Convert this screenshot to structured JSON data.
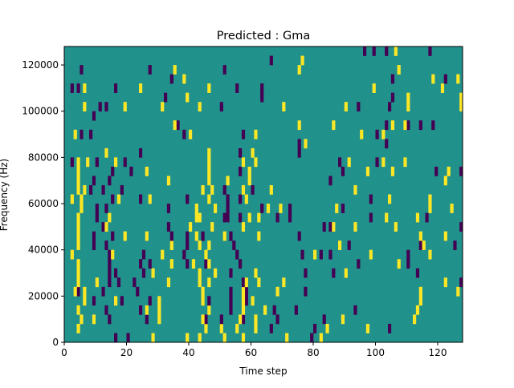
{
  "chart_data": {
    "type": "heatmap",
    "title": "Predicted : Gma",
    "xlabel": "Time step",
    "ylabel": "Frequency (Hz)",
    "xlim": [
      0,
      128
    ],
    "ylim": [
      0,
      128000
    ],
    "n_cols": 128,
    "n_rows": 32,
    "row_height_hz": 4000,
    "xticks": [
      "0",
      "20",
      "40",
      "60",
      "80",
      "100",
      "120"
    ],
    "xtick_values": [
      0,
      20,
      40,
      60,
      80,
      100,
      120
    ],
    "yticks": [
      "0",
      "20000",
      "40000",
      "60000",
      "80000",
      "100000",
      "120000"
    ],
    "ytick_values": [
      0,
      20000,
      40000,
      60000,
      80000,
      100000,
      120000
    ],
    "colors": {
      "background": "#21918c",
      "low": "#440154",
      "high": "#fde725"
    },
    "rows_low_high": [
      [
        [
          16,
          20,
          79
        ],
        [
          28,
          39,
          43,
          51,
          57,
          71,
          82
        ]
      ],
      [
        [
          66,
          80,
          104
        ],
        [
          4,
          45,
          50,
          55,
          61,
          84,
          97
        ]
      ],
      [
        [
          14,
          26,
          45,
          50,
          57,
          68,
          83
        ],
        [
          5,
          9,
          30,
          44,
          56,
          61,
          89,
          112
        ]
      ],
      [
        [
          13,
          24,
          53,
          67,
          74,
          93
        ],
        [
          4,
          26,
          30,
          46,
          57,
          64,
          113
        ]
      ],
      [
        [
          9,
          18,
          27,
          46,
          53,
          58
        ],
        [
          6,
          16,
          30,
          44,
          57,
          60,
          114
        ]
      ],
      [
        [
          4,
          12,
          23,
          53,
          58,
          77
        ],
        [
          3,
          6,
          44,
          57,
          68,
          114,
          126
        ]
      ],
      [
        [
          14,
          17,
          22,
          57,
          127
        ],
        [
          4,
          10,
          33,
          43,
          46,
          58,
          62,
          70,
          122
        ]
      ],
      [
        [
          14,
          16,
          25,
          53,
          77,
          86,
          113
        ],
        [
          4,
          28,
          43,
          48,
          61,
          90
        ]
      ],
      [
        [
          14,
          24,
          27,
          39,
          45,
          56,
          94,
          110
        ],
        [
          4,
          34,
          41,
          46,
          107
        ]
      ],
      [
        [
          14,
          25,
          38,
          55,
          76,
          82,
          85,
          110
        ],
        [
          2,
          15,
          31,
          45,
          80,
          98,
          117
        ]
      ],
      [
        [
          9,
          13,
          39,
          54,
          91,
          114,
          125
        ],
        [
          4,
          34,
          43,
          46,
          88,
          115
        ]
      ],
      [
        [
          9,
          15,
          34,
          39,
          44,
          53,
          75
        ],
        [
          4,
          19,
          26,
          42,
          51,
          62,
          114,
          122
        ]
      ],
      [
        [
          12,
          33,
          83,
          85,
          127
        ],
        [
          4,
          13,
          40,
          47,
          57,
          86,
          93,
          106
        ]
      ],
      [
        [
          10,
          51,
          52,
          56,
          68,
          72,
          98,
          116
        ],
        [
          4,
          14,
          42,
          43,
          59,
          62,
          103,
          113
        ]
      ],
      [
        [
          10,
          13,
          33,
          52,
          63,
          72,
          89
        ],
        [
          5,
          42,
          48,
          65,
          69,
          87,
          117,
          124
        ]
      ],
      [
        [
          15,
          24,
          39,
          52,
          56,
          98
        ],
        [
          2,
          5,
          17,
          27,
          46,
          58,
          104,
          117
        ]
      ],
      [
        [
          8,
          12,
          18,
          51,
          60
        ],
        [
          4,
          6,
          44,
          47,
          57,
          66,
          93
        ]
      ],
      [
        [
          9,
          14,
          85
        ],
        [
          4,
          33,
          46,
          52,
          59,
          122
        ]
      ],
      [
        [
          15,
          21,
          56,
          89,
          119,
          127
        ],
        [
          4,
          26,
          46,
          59,
          97,
          105,
          123
        ]
      ],
      [
        [
          2,
          10,
          19,
          88,
          100
        ],
        [
          4,
          7,
          16,
          46,
          57,
          61,
          91,
          102,
          109
        ]
      ],
      [
        [
          24,
          56,
          75
        ],
        [
          13,
          46,
          60
        ]
      ],
      [
        [
          75,
          103
        ],
        [
          77
        ]
      ],
      [
        [
          5,
          8,
          38,
          57,
          100
        ],
        [
          3,
          40,
          61,
          95,
          102
        ]
      ],
      [
        [
          36,
          103,
          110,
          114,
          118
        ],
        [
          35,
          75,
          86,
          105,
          109
        ]
      ],
      [
        [
          9
        ],
        []
      ],
      [
        [
          11,
          13,
          50,
          94,
          104
        ],
        [
          6,
          19,
          31,
          43,
          70,
          90,
          110,
          127
        ]
      ],
      [
        [
          32,
          63,
          105
        ],
        [
          39,
          110,
          127
        ]
      ],
      [
        [
          2,
          4,
          16,
          55,
          63
        ],
        [
          6,
          24,
          46,
          99,
          121
        ]
      ],
      [
        [
          34,
          105,
          122
        ],
        [
          38,
          118,
          126
        ]
      ],
      [
        [
          5,
          27,
          51
        ],
        [
          35,
          75,
          107
        ]
      ],
      [
        [
          66
        ],
        [
          76
        ]
      ],
      [
        [
          96,
          99,
          103,
          117
        ],
        [
          106
        ]
      ]
    ]
  }
}
